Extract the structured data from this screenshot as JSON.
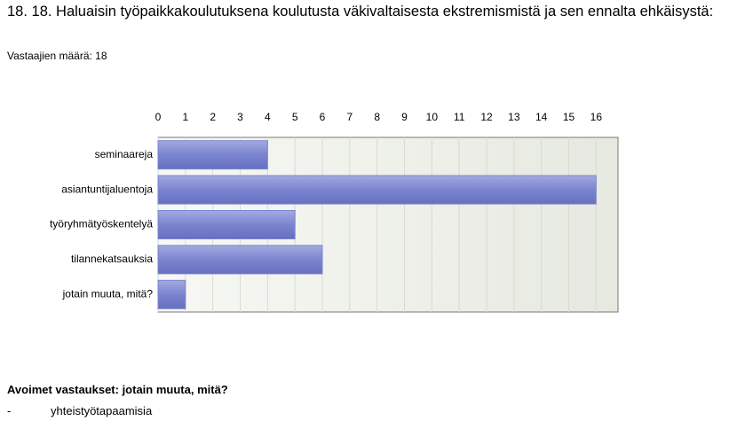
{
  "chart_data": {
    "type": "bar",
    "orientation": "horizontal",
    "title": "18. 18. Haluaisin työpaikkakoulutuksena koulutusta väkivaltaisesta ekstremismistä ja sen ennalta ehkäisystä:",
    "subtitle": "Vastaajien määrä: 18",
    "categories": [
      "seminaareja",
      "asiantuntijaluentoja",
      "työryhmätyöskentelyä",
      "tilannekatsauksia",
      "jotain muuta, mitä?"
    ],
    "values": [
      4,
      16,
      5,
      6,
      1
    ],
    "color": "#7b84cf",
    "xlim": [
      0,
      16.8
    ],
    "xticks": [
      0,
      1,
      2,
      3,
      4,
      5,
      6,
      7,
      8,
      9,
      10,
      11,
      12,
      13,
      14,
      15,
      16
    ],
    "grid": true
  },
  "open_answers": {
    "title": "Avoimet vastaukset: jotain muuta, mitä?",
    "items": [
      {
        "bullet": "-",
        "text": "yhteistyötapaamisia"
      }
    ]
  }
}
